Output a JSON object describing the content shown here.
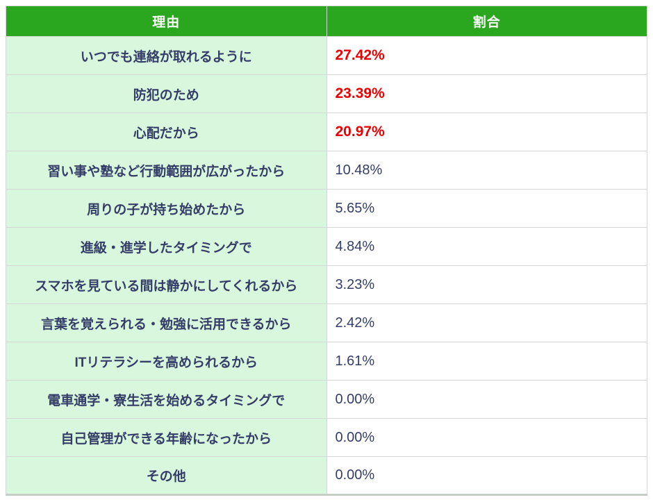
{
  "header": {
    "reason": "理由",
    "ratio": "割合"
  },
  "rows": [
    {
      "reason": "いつでも連絡が取れるように",
      "value": "27.42%",
      "highlighted": true
    },
    {
      "reason": "防犯のため",
      "value": "23.39%",
      "highlighted": true
    },
    {
      "reason": "心配だから",
      "value": "20.97%",
      "highlighted": true
    },
    {
      "reason": "習い事や塾など行動範囲が広がったから",
      "value": "10.48%",
      "highlighted": false
    },
    {
      "reason": "周りの子が持ち始めたから",
      "value": "5.65%",
      "highlighted": false
    },
    {
      "reason": "進級・進学したタイミングで",
      "value": "4.84%",
      "highlighted": false
    },
    {
      "reason": "スマホを見ている間は静かにしてくれるから",
      "value": "3.23%",
      "highlighted": false
    },
    {
      "reason": "言葉を覚えられる・勉強に活用できるから",
      "value": "2.42%",
      "highlighted": false
    },
    {
      "reason": "ITリテラシーを高められるから",
      "value": "1.61%",
      "highlighted": false
    },
    {
      "reason": "電車通学・寮生活を始めるタイミングで",
      "value": "0.00%",
      "highlighted": false
    },
    {
      "reason": "自己管理ができる年齢になったから",
      "value": "0.00%",
      "highlighted": false
    },
    {
      "reason": "その他",
      "value": "0.00%",
      "highlighted": false
    }
  ],
  "colors": {
    "header_bg": "#2ba71f",
    "header_text": "#ffffff",
    "row_bg_green": "#d8f7dc",
    "value_bg": "#ffffff",
    "text_navy": "#343d68",
    "highlight_red": "#ec0000",
    "border": "#d4d8d4"
  },
  "chart_data": {
    "type": "table",
    "columns": [
      "理由",
      "割合"
    ],
    "rows": [
      [
        "いつでも連絡が取れるように",
        27.42
      ],
      [
        "防犯のため",
        23.39
      ],
      [
        "心配だから",
        20.97
      ],
      [
        "習い事や塾など行動範囲が広がったから",
        10.48
      ],
      [
        "周りの子が持ち始めたから",
        5.65
      ],
      [
        "進級・進学したタイミングで",
        4.84
      ],
      [
        "スマホを見ている間は静かにしてくれるから",
        3.23
      ],
      [
        "言葉を覚えられる・勉強に活用できるから",
        2.42
      ],
      [
        "ITリテラシーを高められるから",
        1.61
      ],
      [
        "電車通学・寮生活を始めるタイミングで",
        0.0
      ],
      [
        "自己管理ができる年齢になったから",
        0.0
      ],
      [
        "その他",
        0.0
      ]
    ],
    "value_unit": "%",
    "highlighted_rows": [
      0,
      1,
      2
    ],
    "title": "",
    "notes": "top 3 values shown in bold red"
  }
}
